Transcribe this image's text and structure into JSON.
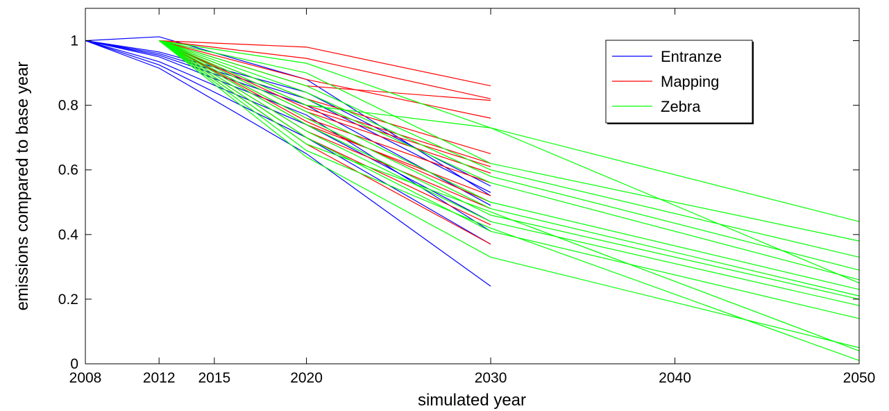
{
  "chart_data": {
    "type": "line",
    "xlabel": "simulated year",
    "ylabel": "emissions compared to base year",
    "xlim": [
      2008,
      2050
    ],
    "ylim": [
      0,
      1.1
    ],
    "x_ticks": [
      2008,
      2012,
      2015,
      2020,
      2030,
      2040,
      2050
    ],
    "x_tick_labels": [
      "2008",
      "2012",
      "2015",
      "2020",
      "2030",
      "2040",
      "2050"
    ],
    "y_ticks": [
      0,
      0.2,
      0.4,
      0.6,
      0.8,
      1
    ],
    "y_tick_labels": [
      "0",
      "0.2",
      "0.4",
      "0.6",
      "0.8",
      "1"
    ],
    "legend_position": "top-right",
    "legend": [
      {
        "label": "Entranze",
        "color": "#0000ff"
      },
      {
        "label": "Mapping",
        "color": "#ff0000"
      },
      {
        "label": "Zebra",
        "color": "#00ff00"
      }
    ],
    "series": [
      {
        "group": "Entranze",
        "color": "#0000ff",
        "points": [
          [
            2008,
            1
          ],
          [
            2012,
            1.012
          ],
          [
            2020,
            0.88
          ],
          [
            2030,
            0.52
          ]
        ]
      },
      {
        "group": "Entranze",
        "color": "#0000ff",
        "points": [
          [
            2008,
            1
          ],
          [
            2012,
            0.965
          ],
          [
            2020,
            0.84
          ],
          [
            2030,
            0.55
          ]
        ]
      },
      {
        "group": "Entranze",
        "color": "#0000ff",
        "points": [
          [
            2008,
            1
          ],
          [
            2012,
            0.955
          ],
          [
            2020,
            0.8
          ],
          [
            2030,
            0.49
          ]
        ]
      },
      {
        "group": "Entranze",
        "color": "#0000ff",
        "points": [
          [
            2008,
            1
          ],
          [
            2012,
            0.935
          ],
          [
            2020,
            0.74
          ],
          [
            2030,
            0.44
          ]
        ]
      },
      {
        "group": "Entranze",
        "color": "#0000ff",
        "points": [
          [
            2008,
            1
          ],
          [
            2012,
            0.925
          ],
          [
            2020,
            0.7
          ],
          [
            2030,
            0.37
          ]
        ]
      },
      {
        "group": "Entranze",
        "color": "#0000ff",
        "points": [
          [
            2008,
            1
          ],
          [
            2012,
            0.915
          ],
          [
            2020,
            0.65
          ],
          [
            2030,
            0.24
          ]
        ]
      },
      {
        "group": "Entranze",
        "color": "#0000ff",
        "points": [
          [
            2008,
            1
          ],
          [
            2012,
            0.95
          ],
          [
            2020,
            0.77
          ],
          [
            2030,
            0.41
          ]
        ]
      },
      {
        "group": "Entranze",
        "color": "#0000ff",
        "points": [
          [
            2008,
            1
          ],
          [
            2012,
            0.96
          ],
          [
            2020,
            0.82
          ],
          [
            2030,
            0.53
          ]
        ]
      },
      {
        "group": "Mapping",
        "color": "#ff0000",
        "points": [
          [
            2012,
            1
          ],
          [
            2020,
            0.98
          ],
          [
            2030,
            0.86
          ]
        ]
      },
      {
        "group": "Mapping",
        "color": "#ff0000",
        "points": [
          [
            2012,
            1
          ],
          [
            2020,
            0.945
          ],
          [
            2030,
            0.82
          ]
        ]
      },
      {
        "group": "Mapping",
        "color": "#ff0000",
        "points": [
          [
            2012,
            1
          ],
          [
            2020,
            0.86
          ],
          [
            2030,
            0.815
          ]
        ]
      },
      {
        "group": "Mapping",
        "color": "#ff0000",
        "points": [
          [
            2012,
            1
          ],
          [
            2020,
            0.88
          ],
          [
            2030,
            0.76
          ]
        ]
      },
      {
        "group": "Mapping",
        "color": "#ff0000",
        "points": [
          [
            2012,
            1
          ],
          [
            2020,
            0.82
          ],
          [
            2030,
            0.65
          ]
        ]
      },
      {
        "group": "Mapping",
        "color": "#ff0000",
        "points": [
          [
            2012,
            1
          ],
          [
            2020,
            0.8
          ],
          [
            2030,
            0.62
          ]
        ]
      },
      {
        "group": "Mapping",
        "color": "#ff0000",
        "points": [
          [
            2012,
            1
          ],
          [
            2020,
            0.78
          ],
          [
            2030,
            0.59
          ]
        ]
      },
      {
        "group": "Mapping",
        "color": "#ff0000",
        "points": [
          [
            2012,
            1
          ],
          [
            2020,
            0.76
          ],
          [
            2030,
            0.56
          ]
        ]
      },
      {
        "group": "Mapping",
        "color": "#ff0000",
        "points": [
          [
            2012,
            1
          ],
          [
            2020,
            0.74
          ],
          [
            2030,
            0.52
          ]
        ]
      },
      {
        "group": "Mapping",
        "color": "#ff0000",
        "points": [
          [
            2012,
            1
          ],
          [
            2020,
            0.72
          ],
          [
            2030,
            0.48
          ]
        ]
      },
      {
        "group": "Mapping",
        "color": "#ff0000",
        "points": [
          [
            2012,
            1
          ],
          [
            2020,
            0.7
          ],
          [
            2030,
            0.43
          ]
        ]
      },
      {
        "group": "Mapping",
        "color": "#ff0000",
        "points": [
          [
            2012,
            1
          ],
          [
            2020,
            0.68
          ],
          [
            2030,
            0.37
          ]
        ]
      },
      {
        "group": "Mapping",
        "color": "#ff0000",
        "points": [
          [
            2012,
            1
          ],
          [
            2020,
            0.79
          ],
          [
            2030,
            0.61
          ]
        ]
      },
      {
        "group": "Mapping",
        "color": "#ff0000",
        "points": [
          [
            2012,
            1
          ],
          [
            2020,
            0.75
          ],
          [
            2030,
            0.5
          ]
        ]
      },
      {
        "group": "Zebra",
        "color": "#00ff00",
        "points": [
          [
            2012,
            1
          ],
          [
            2020,
            0.93
          ],
          [
            2030,
            0.73
          ],
          [
            2050,
            0.44
          ]
        ]
      },
      {
        "group": "Zebra",
        "color": "#00ff00",
        "points": [
          [
            2012,
            1
          ],
          [
            2020,
            0.9
          ],
          [
            2030,
            0.62
          ],
          [
            2050,
            0.38
          ]
        ]
      },
      {
        "group": "Zebra",
        "color": "#00ff00",
        "points": [
          [
            2012,
            1
          ],
          [
            2020,
            0.86
          ],
          [
            2030,
            0.6
          ],
          [
            2050,
            0.33
          ]
        ]
      },
      {
        "group": "Zebra",
        "color": "#00ff00",
        "points": [
          [
            2012,
            1
          ],
          [
            2020,
            0.84
          ],
          [
            2030,
            0.58
          ],
          [
            2050,
            0.29
          ]
        ]
      },
      {
        "group": "Zebra",
        "color": "#00ff00",
        "points": [
          [
            2012,
            1
          ],
          [
            2020,
            0.82
          ],
          [
            2030,
            0.56
          ],
          [
            2050,
            0.26
          ]
        ]
      },
      {
        "group": "Zebra",
        "color": "#00ff00",
        "points": [
          [
            2012,
            1
          ],
          [
            2020,
            0.8
          ],
          [
            2030,
            0.73
          ],
          [
            2050,
            0.25
          ]
        ]
      },
      {
        "group": "Zebra",
        "color": "#00ff00",
        "points": [
          [
            2012,
            1
          ],
          [
            2020,
            0.78
          ],
          [
            2030,
            0.5
          ],
          [
            2050,
            0.23
          ]
        ]
      },
      {
        "group": "Zebra",
        "color": "#00ff00",
        "points": [
          [
            2012,
            1
          ],
          [
            2020,
            0.76
          ],
          [
            2030,
            0.48
          ],
          [
            2050,
            0.21
          ]
        ]
      },
      {
        "group": "Zebra",
        "color": "#00ff00",
        "points": [
          [
            2012,
            1
          ],
          [
            2020,
            0.74
          ],
          [
            2030,
            0.46
          ],
          [
            2050,
            0.2
          ]
        ]
      },
      {
        "group": "Zebra",
        "color": "#00ff00",
        "points": [
          [
            2012,
            1
          ],
          [
            2020,
            0.72
          ],
          [
            2030,
            0.44
          ],
          [
            2050,
            0.18
          ]
        ]
      },
      {
        "group": "Zebra",
        "color": "#00ff00",
        "points": [
          [
            2012,
            1
          ],
          [
            2020,
            0.7
          ],
          [
            2030,
            0.41
          ],
          [
            2050,
            0.14
          ]
        ]
      },
      {
        "group": "Zebra",
        "color": "#00ff00",
        "points": [
          [
            2012,
            1
          ],
          [
            2020,
            0.68
          ],
          [
            2030,
            0.47
          ],
          [
            2050,
            0.04
          ]
        ]
      },
      {
        "group": "Zebra",
        "color": "#00ff00",
        "points": [
          [
            2012,
            1
          ],
          [
            2020,
            0.66
          ],
          [
            2030,
            0.42
          ],
          [
            2050,
            0.01
          ]
        ]
      },
      {
        "group": "Zebra",
        "color": "#00ff00",
        "points": [
          [
            2012,
            1
          ],
          [
            2020,
            0.64
          ],
          [
            2030,
            0.33
          ],
          [
            2050,
            0.05
          ]
        ]
      }
    ]
  }
}
